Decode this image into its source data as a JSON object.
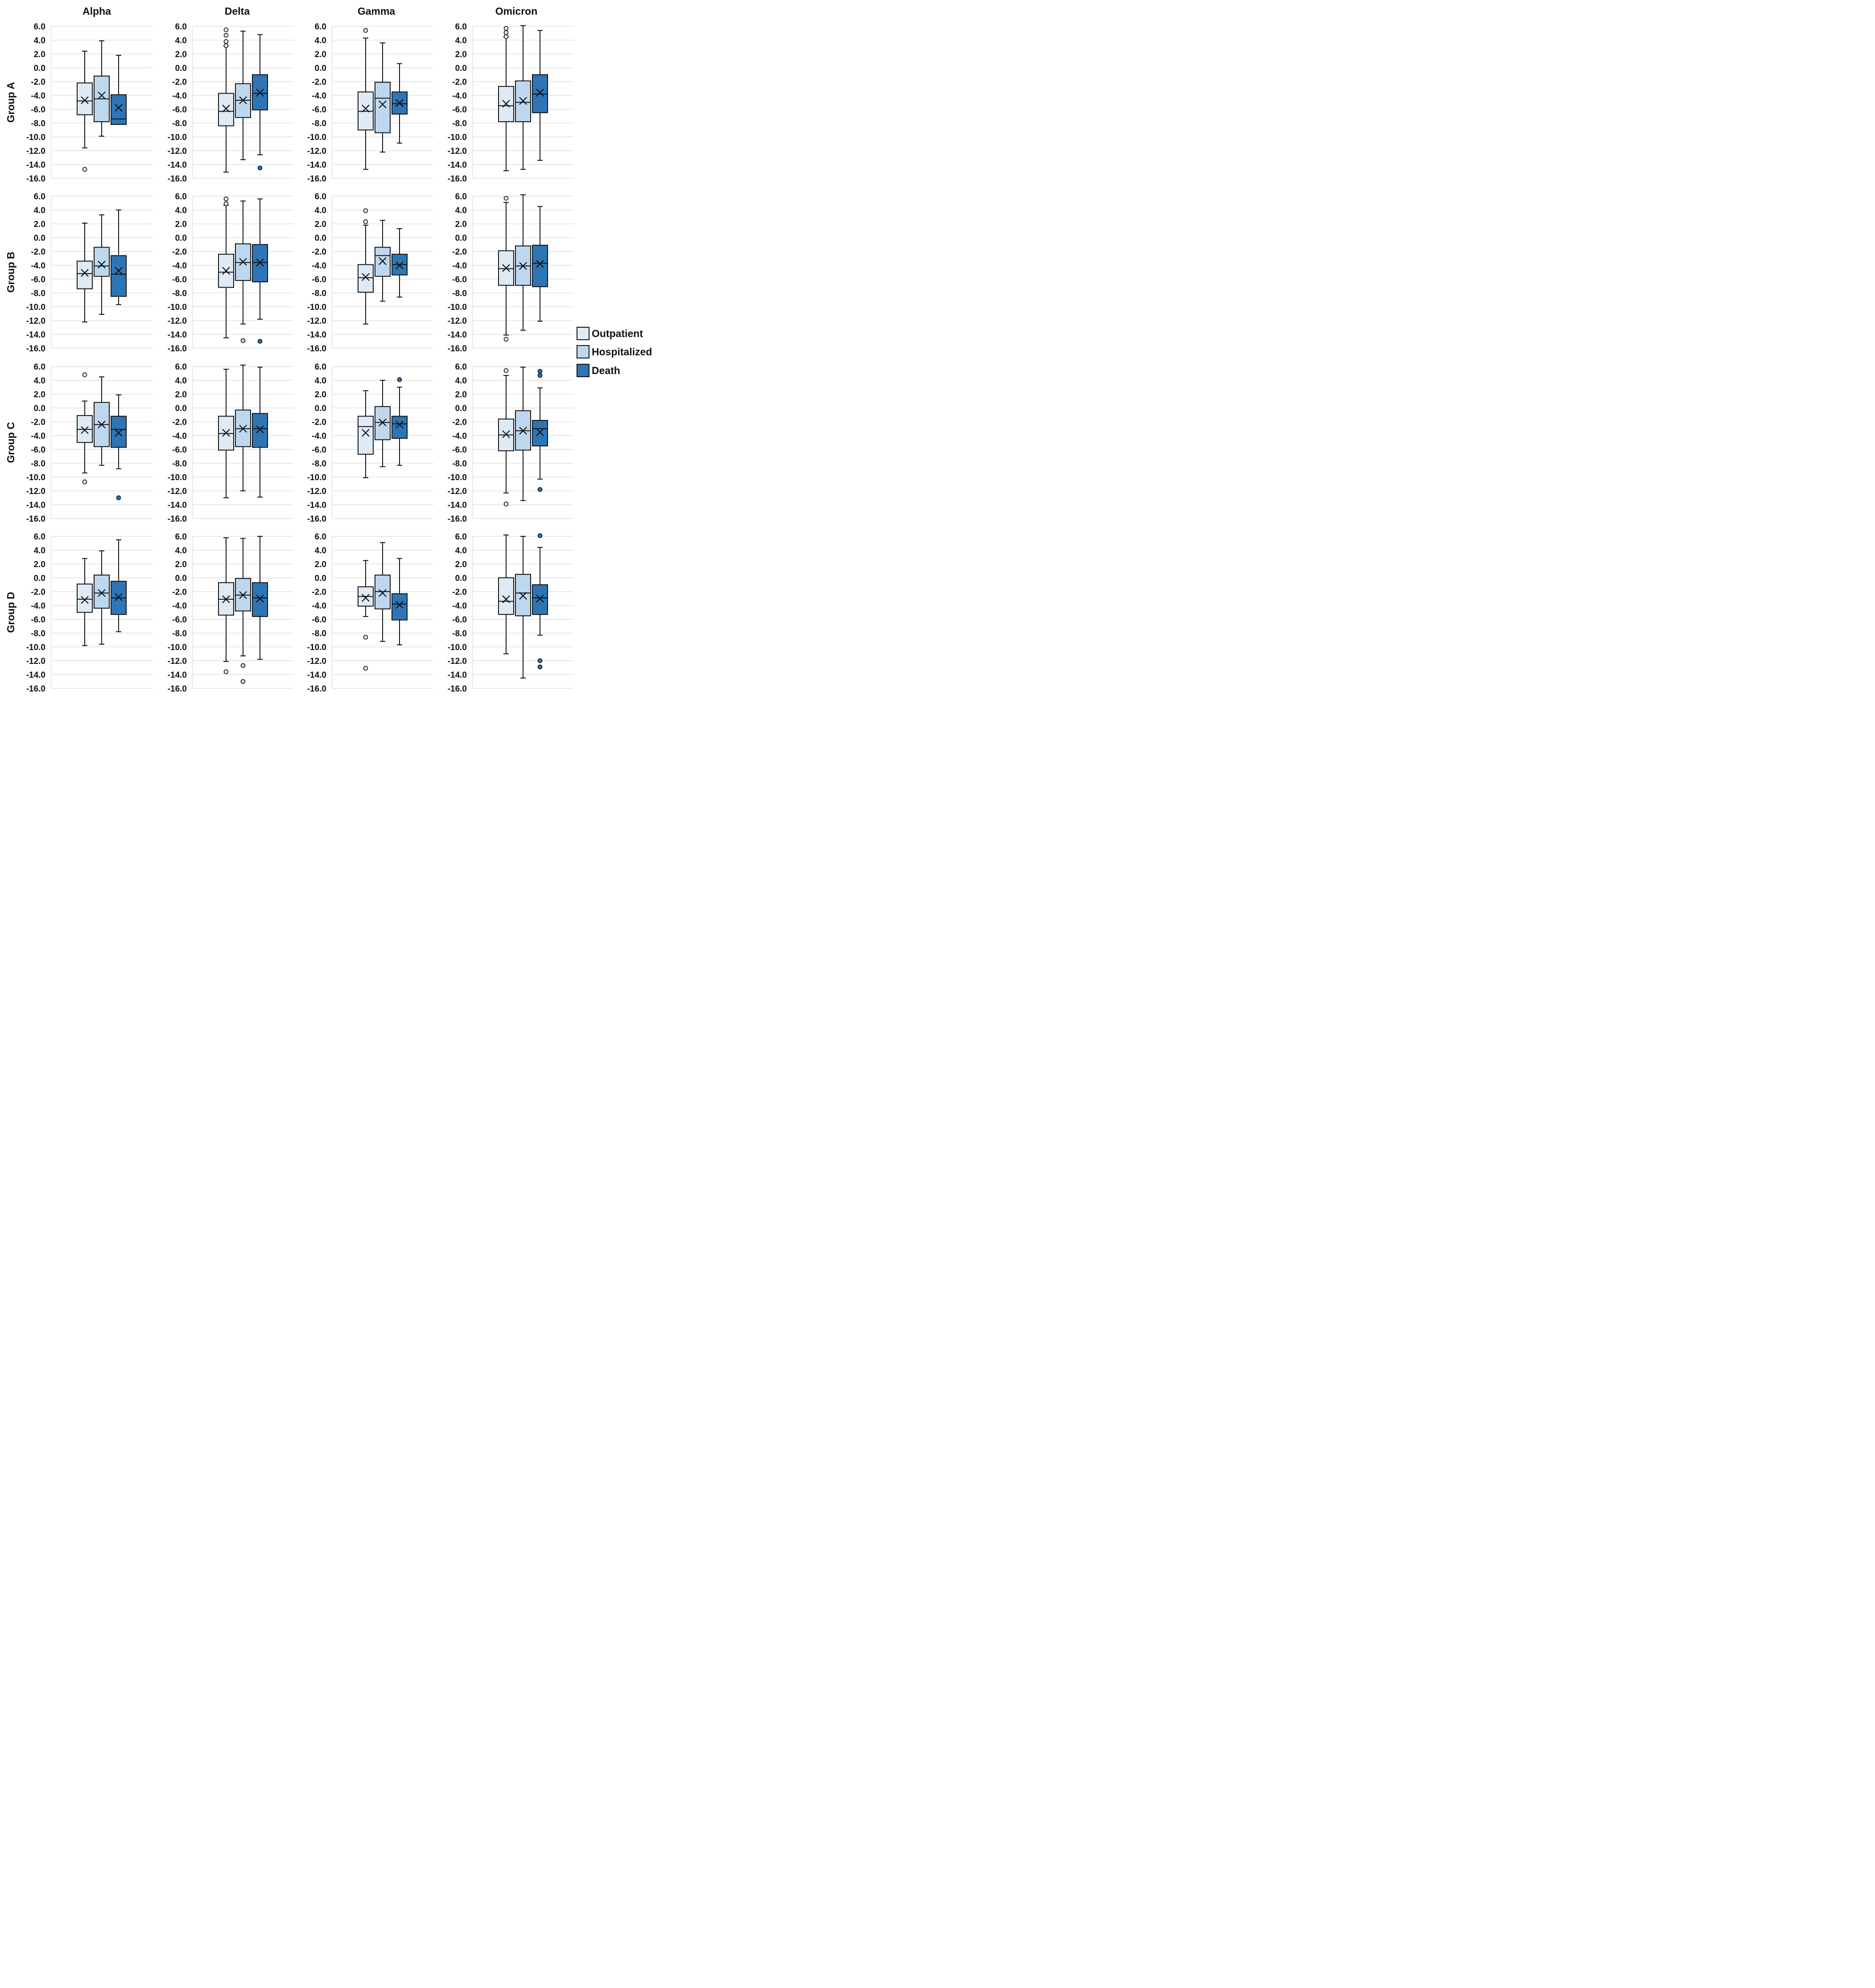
{
  "chart_data": {
    "type": "boxplot",
    "layout": "facet-grid",
    "columns": [
      "Alpha",
      "Delta",
      "Gamma",
      "Omicron"
    ],
    "rows": [
      "Group A",
      "Group B",
      "Group C",
      "Group D"
    ],
    "ylim": [
      -16,
      6
    ],
    "yticks": [
      "6.0",
      "4.0",
      "2.0",
      "0.0",
      "-2.0",
      "-4.0",
      "-6.0",
      "-8.0",
      "-10.0",
      "-12.0",
      "-14.0",
      "-16.0"
    ],
    "grid": true,
    "legend": {
      "position": "right",
      "entries": [
        "Outpatient",
        "Hospitalized",
        "Death"
      ]
    },
    "colors": {
      "Outpatient": "#deebf7",
      "Hospitalized": "#bdd7ee",
      "Death": "#2e75b6"
    },
    "panels": [
      {
        "row": "Group A",
        "column": "Alpha",
        "boxes": [
          {
            "series": "Outpatient",
            "whisker_low": -11.6,
            "q1": -6.8,
            "median": -4.8,
            "q3": -2.2,
            "whisker_high": 2.4,
            "mean": -4.7,
            "outliers": [
              -14.7
            ]
          },
          {
            "series": "Hospitalized",
            "whisker_low": -9.9,
            "q1": -7.8,
            "median": -4.5,
            "q3": -1.2,
            "whisker_high": 3.9,
            "mean": -4.0,
            "outliers": []
          },
          {
            "series": "Death",
            "whisker_low": -8.2,
            "q1": -8.2,
            "median": -7.4,
            "q3": -3.9,
            "whisker_high": 1.8,
            "mean": -5.8,
            "outliers": []
          }
        ]
      },
      {
        "row": "Group A",
        "column": "Delta",
        "boxes": [
          {
            "series": "Outpatient",
            "whisker_low": -15.1,
            "q1": -8.4,
            "median": -6.3,
            "q3": -3.7,
            "whisker_high": 3.2,
            "mean": -5.9,
            "outliers": [
              5.5,
              4.7,
              3.8,
              3.2
            ]
          },
          {
            "series": "Hospitalized",
            "whisker_low": -13.3,
            "q1": -7.2,
            "median": -4.7,
            "q3": -2.3,
            "whisker_high": 5.3,
            "mean": -4.7,
            "outliers": []
          },
          {
            "series": "Death",
            "whisker_low": -12.6,
            "q1": -6.1,
            "median": -3.7,
            "q3": -1.0,
            "whisker_high": 4.8,
            "mean": -3.6,
            "outliers": [
              -14.5
            ]
          }
        ]
      },
      {
        "row": "Group A",
        "column": "Gamma",
        "boxes": [
          {
            "series": "Outpatient",
            "whisker_low": -14.7,
            "q1": -9.0,
            "median": -6.3,
            "q3": -3.5,
            "whisker_high": 4.3,
            "mean": -5.9,
            "outliers": [
              5.4
            ]
          },
          {
            "series": "Hospitalized",
            "whisker_low": -12.2,
            "q1": -9.4,
            "median": -4.4,
            "q3": -2.1,
            "whisker_high": 3.6,
            "mean": -5.3,
            "outliers": []
          },
          {
            "series": "Death",
            "whisker_low": -10.9,
            "q1": -6.7,
            "median": -5.2,
            "q3": -3.5,
            "whisker_high": 0.6,
            "mean": -5.1,
            "outliers": []
          }
        ]
      },
      {
        "row": "Group A",
        "column": "Omicron",
        "boxes": [
          {
            "series": "Outpatient",
            "whisker_low": -14.9,
            "q1": -7.8,
            "median": -5.5,
            "q3": -2.7,
            "whisker_high": 4.5,
            "mean": -5.2,
            "outliers": [
              5.7,
              5.1,
              4.5
            ]
          },
          {
            "series": "Hospitalized",
            "whisker_low": -14.7,
            "q1": -7.8,
            "median": -5.0,
            "q3": -1.9,
            "whisker_high": 6.1,
            "mean": -4.8,
            "outliers": []
          },
          {
            "series": "Death",
            "whisker_low": -13.4,
            "q1": -6.5,
            "median": -3.8,
            "q3": -1.0,
            "whisker_high": 5.4,
            "mean": -3.6,
            "outliers": []
          }
        ]
      },
      {
        "row": "Group B",
        "column": "Alpha",
        "boxes": [
          {
            "series": "Outpatient",
            "whisker_low": -12.2,
            "q1": -7.4,
            "median": -5.2,
            "q3": -3.4,
            "whisker_high": 2.1,
            "mean": -5.1,
            "outliers": []
          },
          {
            "series": "Hospitalized",
            "whisker_low": -11.1,
            "q1": -5.6,
            "median": -4.1,
            "q3": -1.4,
            "whisker_high": 3.3,
            "mean": -3.9,
            "outliers": []
          },
          {
            "series": "Death",
            "whisker_low": -9.7,
            "q1": -8.5,
            "median": -5.3,
            "q3": -2.6,
            "whisker_high": 4.0,
            "mean": -4.8,
            "outliers": []
          }
        ]
      },
      {
        "row": "Group B",
        "column": "Delta",
        "boxes": [
          {
            "series": "Outpatient",
            "whisker_low": -14.5,
            "q1": -7.2,
            "median": -5.0,
            "q3": -2.4,
            "whisker_high": 4.7,
            "mean": -4.8,
            "outliers": [
              5.6,
              4.9
            ]
          },
          {
            "series": "Hospitalized",
            "whisker_low": -12.5,
            "q1": -6.2,
            "median": -3.6,
            "q3": -0.9,
            "whisker_high": 5.3,
            "mean": -3.5,
            "outliers": [
              -14.9
            ]
          },
          {
            "series": "Death",
            "whisker_low": -11.8,
            "q1": -6.4,
            "median": -3.6,
            "q3": -1.0,
            "whisker_high": 5.6,
            "mean": -3.6,
            "outliers": [
              -15.0
            ]
          }
        ]
      },
      {
        "row": "Group B",
        "column": "Gamma",
        "boxes": [
          {
            "series": "Outpatient",
            "whisker_low": -12.5,
            "q1": -7.9,
            "median": -5.8,
            "q3": -3.9,
            "whisker_high": 1.8,
            "mean": -5.7,
            "outliers": [
              3.9,
              2.3
            ]
          },
          {
            "series": "Hospitalized",
            "whisker_low": -9.2,
            "q1": -5.6,
            "median": -2.6,
            "q3": -1.4,
            "whisker_high": 2.5,
            "mean": -3.4,
            "outliers": []
          },
          {
            "series": "Death",
            "whisker_low": -8.6,
            "q1": -5.4,
            "median": -3.9,
            "q3": -2.4,
            "whisker_high": 1.3,
            "mean": -4.0,
            "outliers": []
          }
        ]
      },
      {
        "row": "Group B",
        "column": "Omicron",
        "boxes": [
          {
            "series": "Outpatient",
            "whisker_low": -14.1,
            "q1": -6.9,
            "median": -4.5,
            "q3": -1.9,
            "whisker_high": 5.1,
            "mean": -4.4,
            "outliers": [
              5.7,
              -14.7
            ]
          },
          {
            "series": "Hospitalized",
            "whisker_low": -13.4,
            "q1": -6.9,
            "median": -4.1,
            "q3": -1.2,
            "whisker_high": 6.2,
            "mean": -4.1,
            "outliers": []
          },
          {
            "series": "Death",
            "whisker_low": -12.1,
            "q1": -7.1,
            "median": -3.7,
            "q3": -1.1,
            "whisker_high": 4.5,
            "mean": -3.8,
            "outliers": []
          }
        ]
      },
      {
        "row": "Group C",
        "column": "Alpha",
        "boxes": [
          {
            "series": "Outpatient",
            "whisker_low": -9.4,
            "q1": -5.0,
            "median": -3.1,
            "q3": -1.1,
            "whisker_high": 1.0,
            "mean": -3.2,
            "outliers": [
              4.8,
              -10.7
            ]
          },
          {
            "series": "Hospitalized",
            "whisker_low": -8.3,
            "q1": -5.6,
            "median": -2.4,
            "q3": 0.8,
            "whisker_high": 4.5,
            "mean": -2.4,
            "outliers": []
          },
          {
            "series": "Death",
            "whisker_low": -8.8,
            "q1": -5.7,
            "median": -3.1,
            "q3": -1.2,
            "whisker_high": 1.9,
            "mean": -3.6,
            "outliers": [
              -13.0
            ]
          }
        ]
      },
      {
        "row": "Group C",
        "column": "Delta",
        "boxes": [
          {
            "series": "Outpatient",
            "whisker_low": -13.0,
            "q1": -6.1,
            "median": -3.7,
            "q3": -1.2,
            "whisker_high": 5.6,
            "mean": -3.6,
            "outliers": []
          },
          {
            "series": "Hospitalized",
            "whisker_low": -12.0,
            "q1": -5.6,
            "median": -3.0,
            "q3": -0.3,
            "whisker_high": 6.2,
            "mean": -3.0,
            "outliers": []
          },
          {
            "series": "Death",
            "whisker_low": -12.9,
            "q1": -5.7,
            "median": -3.0,
            "q3": -0.8,
            "whisker_high": 5.9,
            "mean": -3.1,
            "outliers": []
          }
        ]
      },
      {
        "row": "Group C",
        "column": "Gamma",
        "boxes": [
          {
            "series": "Outpatient",
            "whisker_low": -10.1,
            "q1": -6.7,
            "median": -2.7,
            "q3": -1.2,
            "whisker_high": 2.5,
            "mean": -3.6,
            "outliers": []
          },
          {
            "series": "Hospitalized",
            "whisker_low": -8.5,
            "q1": -4.6,
            "median": -2.1,
            "q3": 0.2,
            "whisker_high": 4.0,
            "mean": -2.1,
            "outliers": []
          },
          {
            "series": "Death",
            "whisker_low": -8.3,
            "q1": -4.4,
            "median": -2.3,
            "q3": -1.2,
            "whisker_high": 3.0,
            "mean": -2.4,
            "outliers": [
              4.1
            ]
          }
        ]
      },
      {
        "row": "Group C",
        "column": "Omicron",
        "boxes": [
          {
            "series": "Outpatient",
            "whisker_low": -12.3,
            "q1": -6.2,
            "median": -3.9,
            "q3": -1.6,
            "whisker_high": 4.7,
            "mean": -3.8,
            "outliers": [
              5.4,
              -13.9
            ]
          },
          {
            "series": "Hospitalized",
            "whisker_low": -13.4,
            "q1": -6.1,
            "median": -3.3,
            "q3": -0.4,
            "whisker_high": 5.9,
            "mean": -3.3,
            "outliers": []
          },
          {
            "series": "Death",
            "whisker_low": -10.3,
            "q1": -5.5,
            "median": -3.0,
            "q3": -1.8,
            "whisker_high": 2.9,
            "mean": -3.5,
            "outliers": [
              5.3,
              4.7,
              -11.8
            ]
          }
        ]
      },
      {
        "row": "Group D",
        "column": "Alpha",
        "boxes": [
          {
            "series": "Outpatient",
            "whisker_low": -9.8,
            "q1": -5.0,
            "median": -3.1,
            "q3": -0.9,
            "whisker_high": 2.8,
            "mean": -3.2,
            "outliers": []
          },
          {
            "series": "Hospitalized",
            "whisker_low": -9.6,
            "q1": -4.4,
            "median": -2.2,
            "q3": 0.4,
            "whisker_high": 3.9,
            "mean": -2.2,
            "outliers": []
          },
          {
            "series": "Death",
            "whisker_low": -7.8,
            "q1": -5.3,
            "median": -2.9,
            "q3": -0.5,
            "whisker_high": 5.5,
            "mean": -2.8,
            "outliers": []
          }
        ]
      },
      {
        "row": "Group D",
        "column": "Delta",
        "boxes": [
          {
            "series": "Outpatient",
            "whisker_low": -12.1,
            "q1": -5.4,
            "median": -3.1,
            "q3": -0.7,
            "whisker_high": 5.8,
            "mean": -3.1,
            "outliers": [
              -13.6
            ]
          },
          {
            "series": "Hospitalized",
            "whisker_low": -11.3,
            "q1": -4.8,
            "median": -2.5,
            "q3": -0.1,
            "whisker_high": 5.7,
            "mean": -2.5,
            "outliers": [
              -12.7,
              -15.0
            ]
          },
          {
            "series": "Death",
            "whisker_low": -11.8,
            "q1": -5.6,
            "median": -2.9,
            "q3": -0.7,
            "whisker_high": 6.0,
            "mean": -3.0,
            "outliers": []
          }
        ]
      },
      {
        "row": "Group D",
        "column": "Gamma",
        "boxes": [
          {
            "series": "Outpatient",
            "whisker_low": -5.6,
            "q1": -4.1,
            "median": -2.7,
            "q3": -1.3,
            "whisker_high": 2.5,
            "mean": -2.9,
            "outliers": [
              -8.6,
              -13.1
            ]
          },
          {
            "series": "Hospitalized",
            "whisker_low": -9.2,
            "q1": -4.5,
            "median": -2.0,
            "q3": 0.4,
            "whisker_high": 5.1,
            "mean": -2.2,
            "outliers": []
          },
          {
            "series": "Death",
            "whisker_low": -9.7,
            "q1": -6.1,
            "median": -3.8,
            "q3": -2.3,
            "whisker_high": 2.8,
            "mean": -3.9,
            "outliers": []
          }
        ]
      },
      {
        "row": "Group D",
        "column": "Omicron",
        "boxes": [
          {
            "series": "Outpatient",
            "whisker_low": -11.0,
            "q1": -5.3,
            "median": -3.4,
            "q3": 0.0,
            "whisker_high": 6.2,
            "mean": -3.1,
            "outliers": []
          },
          {
            "series": "Hospitalized",
            "whisker_low": -14.5,
            "q1": -5.5,
            "median": -2.2,
            "q3": 0.5,
            "whisker_high": 6.0,
            "mean": -2.6,
            "outliers": []
          },
          {
            "series": "Death",
            "whisker_low": -8.3,
            "q1": -5.3,
            "median": -2.9,
            "q3": -1.0,
            "whisker_high": 4.4,
            "mean": -3.0,
            "outliers": [
              6.1,
              -12.0,
              -12.9
            ]
          }
        ]
      }
    ]
  }
}
